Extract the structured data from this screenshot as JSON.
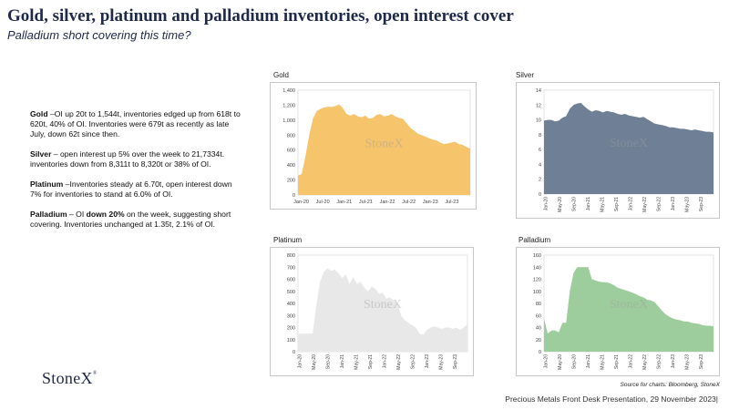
{
  "header": {
    "title": "Gold, silver, platinum and palladium inventories, open interest cover",
    "subtitle": "Palladium short covering this time?"
  },
  "notes": [
    {
      "lead": "Gold",
      "text": " –OI up 20t to 1,544t, inventories edged up from 618t to 620t, 40% of OI.  Inventories  were 679t as recently as late July, down 62t since then."
    },
    {
      "lead": "Silver",
      "text": " – open interest up 5% over the week to 21,7334t.  inventories down from 8,311t to 8,320t or 38% of OI."
    },
    {
      "lead": "Platinum",
      "text": " –Inventories steady at 6.70t, open interest down 7% for inventories to stand at 6.0% of OI."
    },
    {
      "lead": "Palladium",
      "text_before": " – OI ",
      "bold_mid": "down 20%",
      "text_after": " on the week, suggesting short covering.  Inventories unchanged at 1.35t, 2.1% of OI."
    }
  ],
  "watermark": "StoneX",
  "logo": {
    "text": "StoneX",
    "mark": "®"
  },
  "source": "Source for charts: Bloomberg, StoneX",
  "footer": "Precious Metals Front Desk Presentation, 29 November 2023|",
  "chart_data": [
    {
      "type": "area",
      "title": "Gold",
      "color": "#f5c46b",
      "ylim": [
        0,
        1400
      ],
      "yticks": [
        0,
        200,
        400,
        600,
        800,
        1000,
        1200,
        1400
      ],
      "ytick_labels": [
        "0",
        "200",
        "400",
        "600",
        "800",
        "1,000",
        "1,200",
        "1,400"
      ],
      "xtick_labels": [
        "Jan-20",
        "Jul-20",
        "Jan-21",
        "Jul-21",
        "Jan-22",
        "Jul-22",
        "Jan-23",
        "Jul-23"
      ],
      "x_rotated": false,
      "n": 47,
      "values": [
        260,
        280,
        520,
        800,
        1020,
        1120,
        1150,
        1170,
        1180,
        1175,
        1190,
        1210,
        1160,
        1080,
        1060,
        1080,
        1050,
        1040,
        1060,
        1020,
        1030,
        1070,
        1080,
        1050,
        1060,
        1080,
        1050,
        1030,
        1020,
        960,
        900,
        860,
        820,
        800,
        780,
        760,
        740,
        730,
        700,
        680,
        690,
        700,
        710,
        680,
        670,
        640,
        620
      ]
    },
    {
      "type": "area",
      "title": "Silver",
      "color": "#6e7f96",
      "ylim": [
        0,
        14
      ],
      "yticks": [
        0,
        2,
        4,
        6,
        8,
        10,
        12,
        14
      ],
      "ytick_labels": [
        "0",
        "2",
        "4",
        "6",
        "8",
        "10",
        "12",
        "14"
      ],
      "xtick_labels": [
        "Jan-20",
        "May-20",
        "Sep-20",
        "Jan-21",
        "May-21",
        "Sep-21",
        "Jan-22",
        "May-22",
        "Sep-22",
        "Jan-23",
        "May-23",
        "Sep-23"
      ],
      "x_rotated": true,
      "n": 47,
      "values": [
        9.9,
        10.0,
        10.0,
        9.8,
        9.9,
        10.3,
        10.5,
        11.5,
        12.0,
        12.2,
        12.3,
        11.8,
        11.4,
        11.1,
        11.3,
        11.2,
        11.0,
        11.2,
        11.1,
        11.0,
        10.8,
        10.7,
        10.8,
        10.6,
        10.5,
        10.4,
        10.3,
        10.4,
        10.1,
        9.8,
        9.5,
        9.4,
        9.3,
        9.2,
        9.0,
        9.0,
        8.9,
        8.8,
        8.8,
        8.7,
        8.6,
        8.7,
        8.6,
        8.5,
        8.4,
        8.4,
        8.3
      ]
    },
    {
      "type": "area",
      "title": "Platinum",
      "color": "#e8e8e8",
      "ylim": [
        0,
        800
      ],
      "yticks": [
        0,
        100,
        200,
        300,
        400,
        500,
        600,
        700,
        800
      ],
      "ytick_labels": [
        "0",
        "100",
        "200",
        "300",
        "400",
        "500",
        "600",
        "700",
        "800"
      ],
      "xtick_labels": [
        "Jan-20",
        "May-20",
        "Sep-20",
        "Jan-21",
        "May-21",
        "Sep-21",
        "Jan-22",
        "May-22",
        "Sep-22",
        "Jan-23",
        "May-23",
        "Sep-23"
      ],
      "x_rotated": true,
      "n": 47,
      "values": [
        150,
        150,
        150,
        150,
        150,
        390,
        580,
        660,
        690,
        670,
        680,
        650,
        610,
        640,
        560,
        620,
        560,
        580,
        530,
        500,
        540,
        520,
        480,
        490,
        440,
        450,
        420,
        400,
        300,
        260,
        240,
        220,
        200,
        150,
        140,
        180,
        200,
        210,
        200,
        190,
        200,
        200,
        190,
        200,
        180,
        200,
        230
      ]
    },
    {
      "type": "area",
      "title": "Palladium",
      "color": "#9dcc9d",
      "ylim": [
        0,
        160
      ],
      "yticks": [
        0,
        20,
        40,
        60,
        80,
        100,
        120,
        140,
        160
      ],
      "ytick_labels": [
        "0",
        "20",
        "40",
        "60",
        "80",
        "100",
        "120",
        "140",
        "160"
      ],
      "xtick_labels": [
        "Jan-20",
        "May-20",
        "Sep-20",
        "Jan-21",
        "May-21",
        "Sep-21",
        "Jan-22",
        "May-22",
        "Sep-22",
        "Jan-23",
        "May-23",
        "Sep-23"
      ],
      "x_rotated": true,
      "n": 47,
      "values": [
        55,
        30,
        35,
        35,
        32,
        48,
        48,
        100,
        130,
        140,
        140,
        140,
        140,
        120,
        118,
        116,
        115,
        115,
        113,
        110,
        106,
        104,
        102,
        100,
        98,
        95,
        92,
        90,
        86,
        85,
        82,
        75,
        68,
        62,
        58,
        55,
        53,
        52,
        50,
        50,
        48,
        47,
        46,
        44,
        43,
        43,
        42
      ]
    }
  ]
}
